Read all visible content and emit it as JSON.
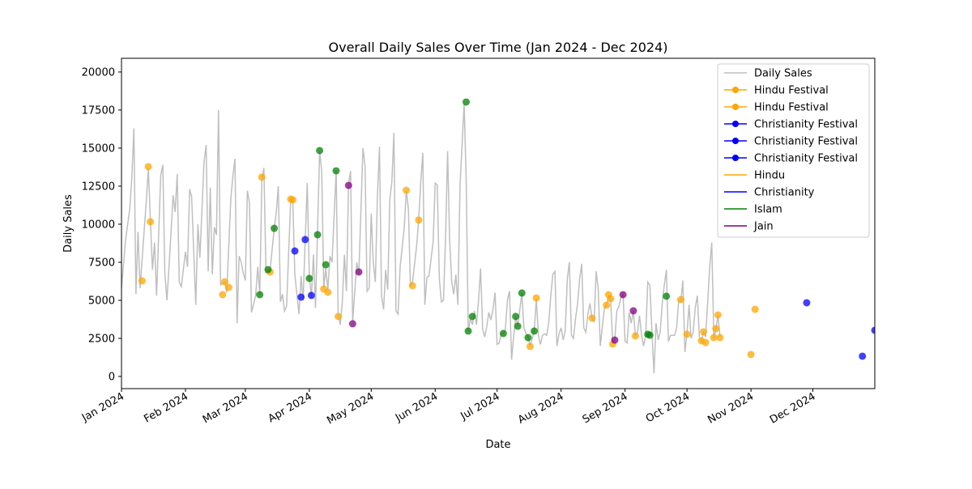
{
  "chart_data": {
    "type": "line",
    "title": "Overall Daily Sales Over Time (Jan 2024 - Dec 2024)",
    "x_label": "Date",
    "y_label": "Daily Sales",
    "xlim": [
      0,
      365
    ],
    "xticks": [
      {
        "value": 0,
        "label": "Jan 2024"
      },
      {
        "value": 31,
        "label": "Feb 2024"
      },
      {
        "value": 60,
        "label": "Mar 2024"
      },
      {
        "value": 91,
        "label": "Apr 2024"
      },
      {
        "value": 121,
        "label": "May 2024"
      },
      {
        "value": 152,
        "label": "Jun 2024"
      },
      {
        "value": 182,
        "label": "Jul 2024"
      },
      {
        "value": 213,
        "label": "Aug 2024"
      },
      {
        "value": 244,
        "label": "Sep 2024"
      },
      {
        "value": 274,
        "label": "Oct 2024"
      },
      {
        "value": 305,
        "label": "Nov 2024"
      },
      {
        "value": 335,
        "label": "Dec 2024"
      }
    ],
    "ylim": [
      -800,
      20900
    ],
    "yticks": [
      0,
      2500,
      5000,
      7500,
      10000,
      12500,
      15000,
      17500,
      20000
    ],
    "grid": false,
    "legend": "upper right",
    "series": [
      {
        "name": "Daily Sales",
        "color": "#bfbfbf",
        "mode": "line",
        "legend_marker": false,
        "x": [
          0,
          2,
          4,
          5,
          6,
          7,
          8,
          9,
          12,
          13,
          15,
          16,
          17,
          19,
          20,
          21,
          22,
          24,
          25,
          26,
          27,
          28,
          29,
          31,
          32,
          33,
          34,
          36,
          37,
          38,
          40,
          41,
          42,
          43,
          44,
          45,
          46,
          47,
          48,
          50,
          51,
          53,
          54,
          55,
          56,
          57,
          58,
          59,
          60,
          61,
          62,
          63,
          65,
          66,
          67,
          68,
          69,
          70,
          72,
          74,
          75,
          76,
          77,
          78,
          79,
          80,
          82,
          83,
          84,
          86,
          87,
          88,
          90,
          91,
          92,
          93,
          94,
          96,
          97,
          98,
          99,
          100,
          101,
          102,
          104,
          105,
          106,
          107,
          108,
          109,
          110,
          111,
          112,
          114,
          115,
          117,
          118,
          119,
          120,
          121,
          122,
          123,
          124,
          125,
          126,
          127,
          128,
          129,
          130,
          131,
          132,
          133,
          134,
          135,
          137,
          138,
          139,
          140,
          141,
          143,
          144,
          145,
          146,
          147,
          148,
          149,
          151,
          152,
          153,
          154,
          155,
          156,
          157,
          158,
          159,
          160,
          161,
          162,
          163,
          164,
          166,
          167,
          168,
          169,
          170,
          171,
          172,
          173,
          174,
          175,
          176,
          177,
          178,
          179,
          180,
          181,
          182,
          183,
          184,
          185,
          186,
          187,
          188,
          189,
          190,
          191,
          192,
          193,
          194,
          195,
          196,
          197,
          198,
          199,
          200,
          201,
          202,
          203,
          204,
          205,
          206,
          207,
          208,
          209,
          210,
          211,
          212,
          213,
          214,
          215,
          216,
          217,
          218,
          219,
          220,
          221,
          222,
          223,
          224,
          225,
          226,
          227,
          228,
          229,
          230,
          231,
          232,
          233,
          234,
          235,
          236,
          237,
          238,
          239,
          240,
          241,
          242,
          243,
          244,
          245,
          246,
          247,
          248,
          249,
          250,
          251,
          252,
          253,
          254,
          255,
          256,
          257,
          258,
          259,
          260,
          261,
          262,
          263,
          264,
          265,
          266,
          267,
          268,
          269,
          270,
          271,
          272,
          273,
          274,
          275,
          276,
          277,
          278,
          279,
          280,
          281,
          282,
          283,
          284,
          285,
          286,
          287,
          288,
          289,
          290
        ],
        "values": [
          5800,
          9000,
          11000,
          13000,
          16300,
          5400,
          9500,
          5800,
          11500,
          13700,
          7000,
          8800,
          5300,
          13200,
          13900,
          6800,
          5000,
          9500,
          11900,
          10800,
          13300,
          6200,
          5900,
          8200,
          7200,
          12300,
          11800,
          4700,
          10000,
          7800,
          14100,
          15200,
          6900,
          12400,
          6700,
          9800,
          9300,
          17500,
          6000,
          6200,
          5500,
          11700,
          13200,
          14300,
          3500,
          7900,
          7500,
          6800,
          6300,
          12200,
          11400,
          4200,
          5300,
          7200,
          5400,
          12900,
          13700,
          6800,
          7000,
          9700,
          10800,
          12500,
          4900,
          5400,
          4300,
          4600,
          11600,
          11500,
          6700,
          4100,
          6600,
          5000,
          12700,
          6600,
          5200,
          8000,
          4500,
          14800,
          13500,
          5800,
          7100,
          5700,
          7900,
          7500,
          13500,
          4100,
          3400,
          4900,
          8000,
          5600,
          12600,
          13500,
          3600,
          7500,
          6700,
          15000,
          13800,
          5600,
          5800,
          10700,
          7500,
          6200,
          11800,
          15100,
          5300,
          4400,
          7000,
          5700,
          11600,
          12800,
          16000,
          4300,
          4100,
          7200,
          9800,
          12200,
          11000,
          5900,
          6200,
          8600,
          10300,
          12800,
          14700,
          4700,
          6500,
          6600,
          8800,
          12700,
          12600,
          6400,
          4900,
          5000,
          9000,
          14800,
          9000,
          6200,
          5400,
          6700,
          4700,
          12500,
          17900,
          13000,
          3000,
          3800,
          3400,
          4300,
          3400,
          5000,
          7100,
          3100,
          2600,
          3300,
          4200,
          3700,
          4400,
          5500,
          2100,
          2200,
          2800,
          2800,
          3100,
          5000,
          5600,
          1100,
          2600,
          3900,
          3300,
          4400,
          5500,
          3200,
          2800,
          2600,
          2000,
          2500,
          3000,
          5100,
          2700,
          2100,
          2700,
          2800,
          2700,
          3500,
          5300,
          6700,
          6900,
          2000,
          2800,
          3200,
          2400,
          3000,
          6400,
          7500,
          2700,
          2500,
          3800,
          4800,
          6400,
          7400,
          3200,
          2900,
          4100,
          4800,
          3800,
          3600,
          6900,
          5700,
          2000,
          3300,
          4500,
          4700,
          5300,
          5100,
          2200,
          2400,
          4300,
          4600,
          5200,
          5400,
          2300,
          2200,
          4200,
          3500,
          4300,
          2700,
          2900,
          4000,
          2700,
          2000,
          2700,
          6200,
          6000,
          3000,
          200,
          3500,
          2400,
          2900,
          4800,
          6000,
          7000,
          2300,
          2700,
          2700,
          2700,
          3200,
          5000,
          4900,
          6300,
          1600,
          2800,
          4700,
          2500,
          2900,
          4500,
          5300,
          2600,
          2300,
          2900,
          2600,
          4800,
          7200,
          8800,
          2500,
          3100,
          4000,
          2600
        ]
      },
      {
        "name": "Hindu Festival",
        "color": "#ffa500",
        "mode": "points",
        "legend_marker": true,
        "x": [
          10,
          13,
          14,
          49,
          50,
          52,
          68,
          72,
          82,
          83,
          98,
          100
        ],
        "values": [
          6280,
          13780,
          10160,
          5370,
          6220,
          5850,
          13090,
          6860,
          11650,
          11600,
          5740,
          5530
        ]
      },
      {
        "name": "Hindu Festival",
        "color": "#ffa500",
        "mode": "points",
        "legend_marker": true,
        "x": [
          105,
          138,
          141,
          144,
          198,
          201,
          228,
          235,
          236,
          237,
          238,
          249
        ],
        "values": [
          3940,
          12230,
          5960,
          10270,
          1970,
          5160,
          3830,
          4680,
          5370,
          5110,
          2130,
          2660
        ]
      },
      {
        "name": "Christianity Festival",
        "color": "#0000ff",
        "mode": "points",
        "legend_marker": true,
        "x": [
          84,
          87
        ],
        "values": [
          8240,
          5210
        ]
      },
      {
        "name": "Christianity Festival",
        "color": "#0000ff",
        "mode": "points",
        "legend_marker": true,
        "x": [
          89,
          92
        ],
        "values": [
          8990,
          5320
        ]
      },
      {
        "name": "Christianity Festival",
        "color": "#0000ff",
        "mode": "points",
        "legend_marker": true,
        "x": [
          332,
          359
        ],
        "values": [
          4840,
          1330
        ]
      },
      {
        "name": "Hindu",
        "color": "#ffa500",
        "mode": "points",
        "legend_marker": false,
        "x": [
          271,
          274,
          281,
          282,
          283,
          287,
          288,
          289,
          290,
          305,
          307
        ],
        "values": [
          5050,
          2770,
          2340,
          2930,
          2230,
          2550,
          3140,
          4040,
          2550,
          1440,
          4410
        ]
      },
      {
        "name": "Christianity",
        "color": "#0000ff",
        "mode": "points",
        "legend_marker": false,
        "x": [
          365
        ],
        "values": [
          3030
        ]
      },
      {
        "name": "Islam",
        "color": "#008000",
        "mode": "points",
        "legend_marker": false,
        "x": [
          67,
          71,
          74,
          91,
          95,
          96,
          99,
          104,
          167,
          168,
          170,
          185,
          191,
          192,
          194,
          197,
          200,
          255,
          256,
          264
        ],
        "values": [
          5370,
          7020,
          9730,
          6440,
          9310,
          14840,
          7340,
          13510,
          18030,
          2980,
          3940,
          2820,
          3940,
          3300,
          5480,
          2550,
          2980,
          2770,
          2710,
          5270
        ]
      },
      {
        "name": "Jain",
        "color": "#800080",
        "mode": "points",
        "legend_marker": false,
        "x": [
          110,
          112,
          115,
          239,
          243,
          248
        ],
        "values": [
          12550,
          3460,
          6860,
          2390,
          5370,
          4310
        ]
      }
    ]
  }
}
